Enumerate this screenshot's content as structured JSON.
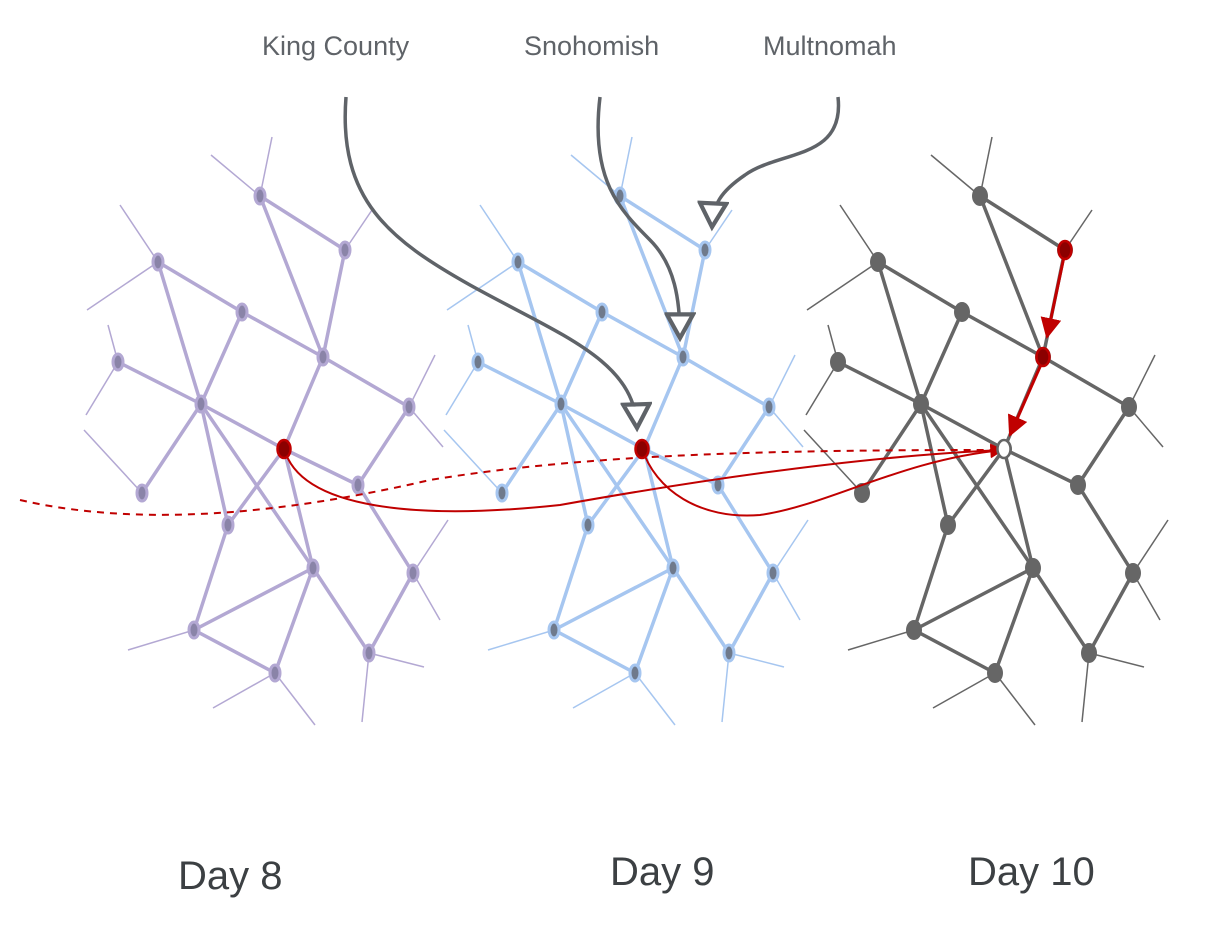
{
  "labels": {
    "county_king": "King County",
    "county_snohomish": "Snohomish",
    "county_multnomah": "Multnomah",
    "day_8": "Day 8",
    "day_9": "Day 9",
    "day_10": "Day 10"
  },
  "colors": {
    "day8_graph": "#b3a8d3",
    "day8_nodes": "#8a84a8",
    "day9_graph": "#a6c6f0",
    "day9_nodes": "#6f7a8c",
    "day10_graph": "#666666",
    "county_arrows": "#5f6368",
    "highlight": "#c00000"
  }
}
